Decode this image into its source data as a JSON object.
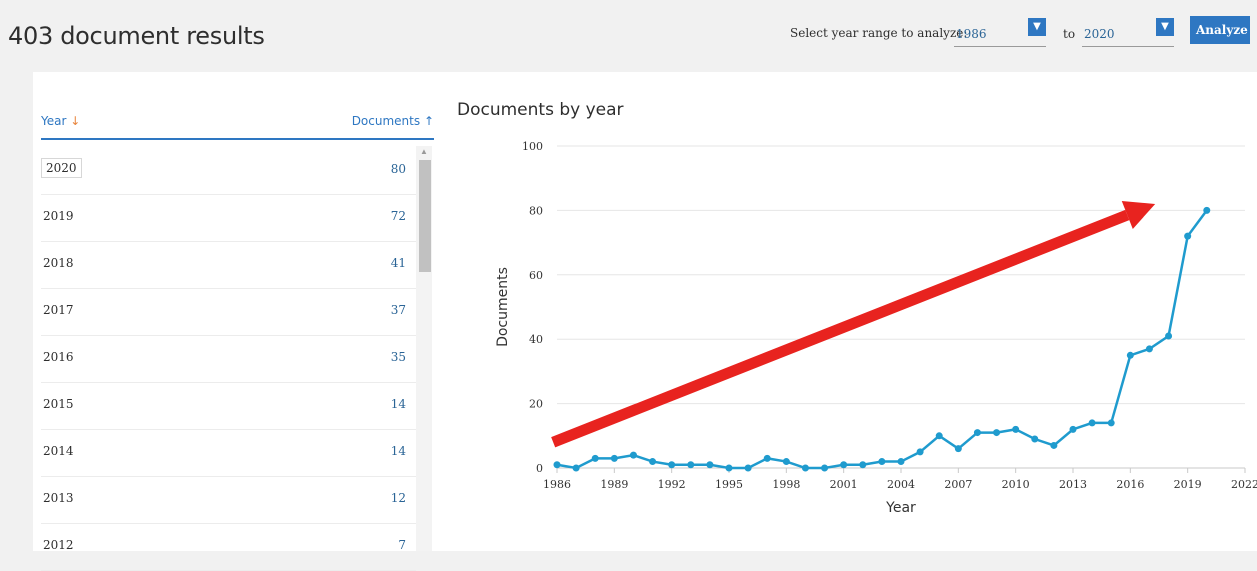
{
  "header": {
    "results_title": "403 document results",
    "range_label": "Select year range to analyze:",
    "from_year": "1986",
    "to_label": "to",
    "to_year": "2020",
    "analyze_label": "Analyze"
  },
  "table": {
    "year_header": "Year",
    "docs_header": "Documents",
    "rows": [
      {
        "year": "2020",
        "count": "80"
      },
      {
        "year": "2019",
        "count": "72"
      },
      {
        "year": "2018",
        "count": "41"
      },
      {
        "year": "2017",
        "count": "37"
      },
      {
        "year": "2016",
        "count": "35"
      },
      {
        "year": "2015",
        "count": "14"
      },
      {
        "year": "2014",
        "count": "14"
      },
      {
        "year": "2013",
        "count": "12"
      },
      {
        "year": "2012",
        "count": "7"
      }
    ]
  },
  "colors": {
    "accent": "#2e77c2",
    "line": "#1f9bce",
    "annotation_arrow": "#e8231f",
    "sort_arrow": "#e8843b"
  },
  "icons": {
    "select_chevron": "chevron-down-icon",
    "sort_year": "arrow-down-icon",
    "sort_docs": "arrow-up-icon"
  },
  "chart_data": {
    "type": "line",
    "title": "Documents by year",
    "xlabel": "Year",
    "ylabel": "Documents",
    "xlim": [
      1986,
      2022
    ],
    "ylim": [
      0,
      100
    ],
    "xticks": [
      1986,
      1989,
      1992,
      1995,
      1998,
      2001,
      2004,
      2007,
      2010,
      2013,
      2016,
      2019,
      2022
    ],
    "yticks": [
      0,
      20,
      40,
      60,
      80,
      100
    ],
    "grid": true,
    "x": [
      1986,
      1987,
      1988,
      1989,
      1990,
      1991,
      1992,
      1993,
      1994,
      1995,
      1996,
      1997,
      1998,
      1999,
      2000,
      2001,
      2002,
      2003,
      2004,
      2005,
      2006,
      2007,
      2008,
      2009,
      2010,
      2011,
      2012,
      2013,
      2014,
      2015,
      2016,
      2017,
      2018,
      2019,
      2020
    ],
    "series": [
      {
        "values": [
          1,
          0,
          3,
          3,
          4,
          2,
          1,
          1,
          1,
          0,
          0,
          3,
          2,
          0,
          0,
          1,
          1,
          2,
          2,
          5,
          10,
          6,
          11,
          11,
          12,
          9,
          7,
          12,
          14,
          14,
          35,
          37,
          41,
          72,
          80
        ]
      }
    ],
    "annotation": {
      "type": "arrow",
      "from": [
        1985.8,
        8
      ],
      "to": [
        2017.3,
        82
      ]
    }
  }
}
